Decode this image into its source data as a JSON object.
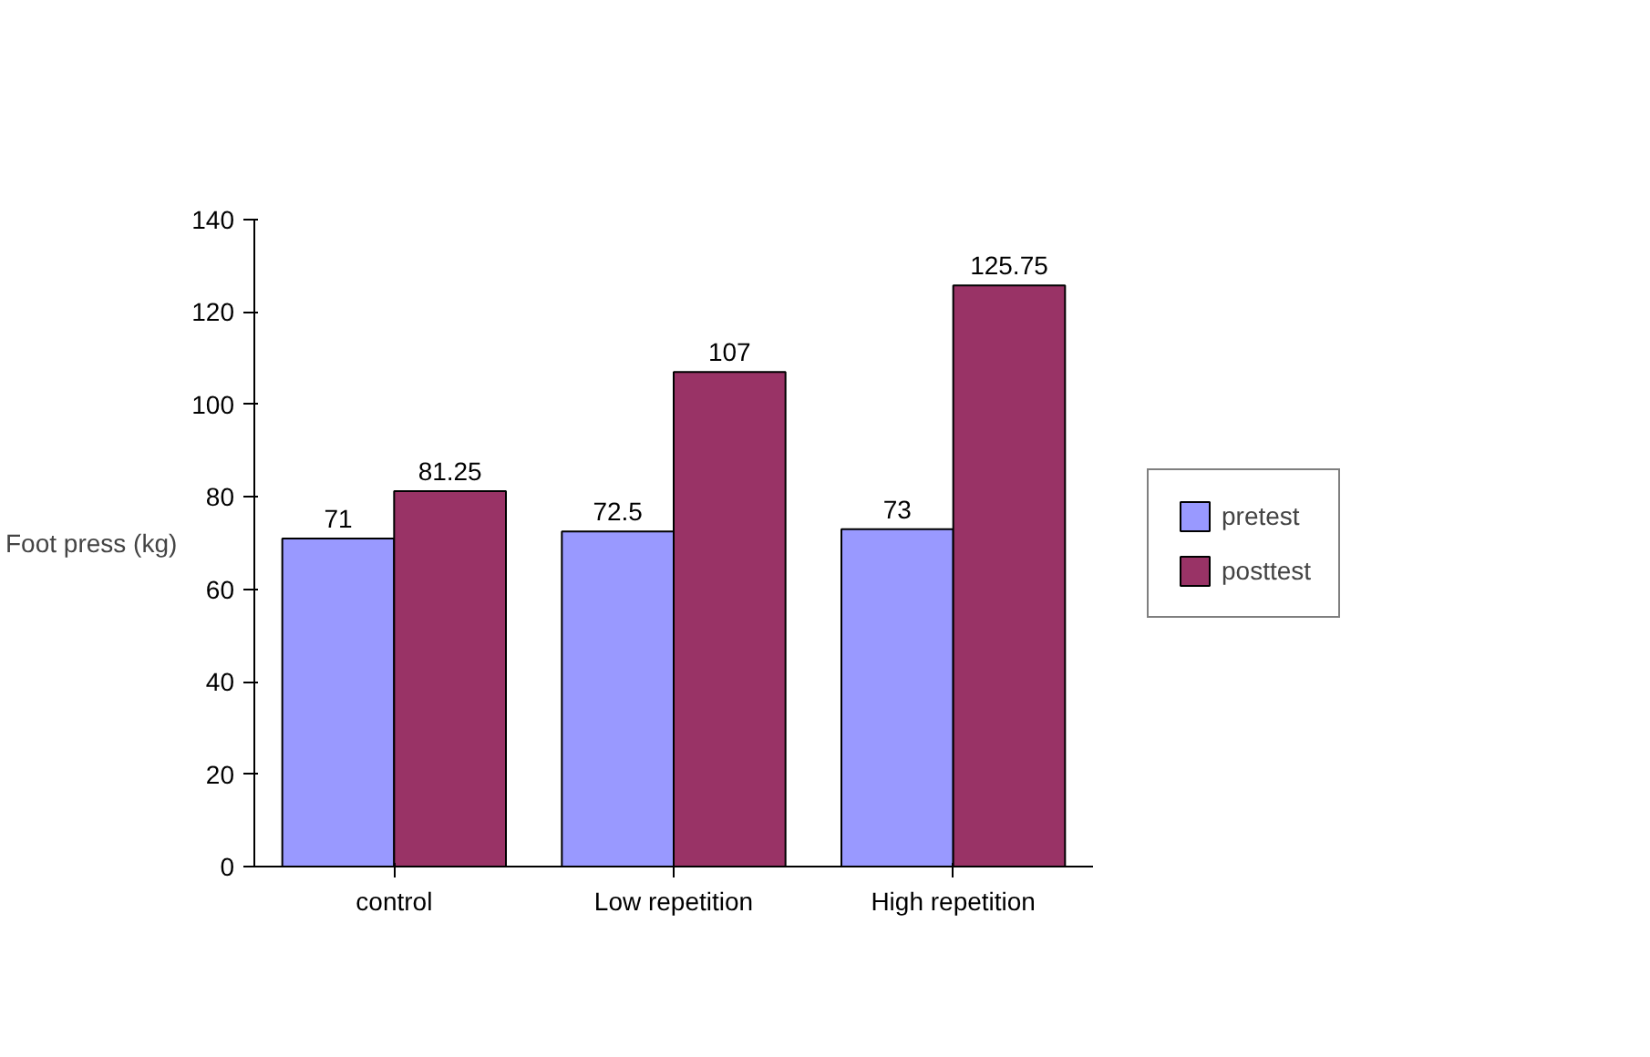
{
  "chart_data": {
    "type": "bar",
    "ylabel": "Foot press (kg)",
    "categories": [
      "control",
      "Low repetition",
      "High repetition"
    ],
    "series": [
      {
        "name": "pretest",
        "color": "#9999ff",
        "values": [
          71,
          72.5,
          73
        ]
      },
      {
        "name": "posttest",
        "color": "#993366",
        "values": [
          81.25,
          107,
          125.75
        ]
      }
    ],
    "ylim": [
      0,
      140
    ],
    "yticks": [
      0,
      20,
      40,
      60,
      80,
      100,
      120,
      140
    ],
    "data_labels": true,
    "legend": "right",
    "grid": false
  }
}
